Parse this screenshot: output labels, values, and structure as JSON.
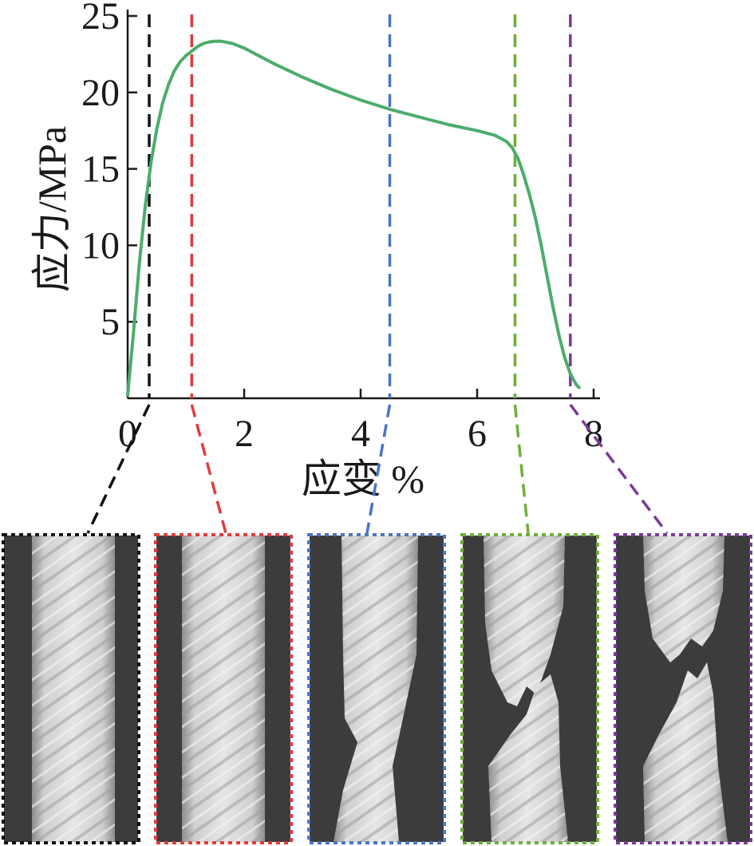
{
  "chart_data": {
    "type": "line",
    "xlabel": "应变 %",
    "ylabel": "应力/MPa",
    "xlim": [
      0,
      8
    ],
    "ylim": [
      0,
      25
    ],
    "x_ticks": [
      0,
      2,
      4,
      6,
      8
    ],
    "y_ticks": [
      5,
      10,
      15,
      20,
      25
    ],
    "grid": false,
    "series": [
      {
        "color": "#4cac6c",
        "x": [
          0.0,
          0.1,
          0.2,
          0.3,
          0.4,
          0.5,
          0.6,
          0.7,
          0.8,
          0.9,
          1.0,
          1.1,
          1.2,
          1.3,
          1.4,
          1.5,
          1.6,
          1.8,
          2.0,
          2.2,
          2.5,
          3.0,
          3.5,
          4.0,
          4.5,
          5.0,
          5.5,
          6.0,
          6.3,
          6.5,
          6.6,
          6.7,
          6.8,
          6.9,
          7.0,
          7.1,
          7.2,
          7.3,
          7.4,
          7.5,
          7.6,
          7.7,
          7.75
        ],
        "y": [
          0.2,
          4.3,
          8.8,
          12.5,
          15.4,
          17.6,
          19.3,
          20.5,
          21.4,
          22.0,
          22.4,
          22.7,
          23.0,
          23.2,
          23.3,
          23.35,
          23.35,
          23.2,
          22.9,
          22.5,
          21.9,
          21.0,
          20.2,
          19.5,
          18.9,
          18.4,
          17.9,
          17.5,
          17.2,
          16.8,
          16.4,
          15.7,
          14.6,
          13.3,
          11.8,
          10.0,
          8.0,
          6.0,
          4.2,
          2.7,
          1.6,
          0.9,
          0.7
        ]
      }
    ],
    "markers": [
      {
        "x": 0.37,
        "color": "#111111"
      },
      {
        "x": 1.1,
        "color": "#e03c3c"
      },
      {
        "x": 4.5,
        "color": "#4a74c4"
      },
      {
        "x": 6.65,
        "color": "#6fae3c"
      },
      {
        "x": 7.6,
        "color": "#7a3a9a"
      }
    ]
  }
}
